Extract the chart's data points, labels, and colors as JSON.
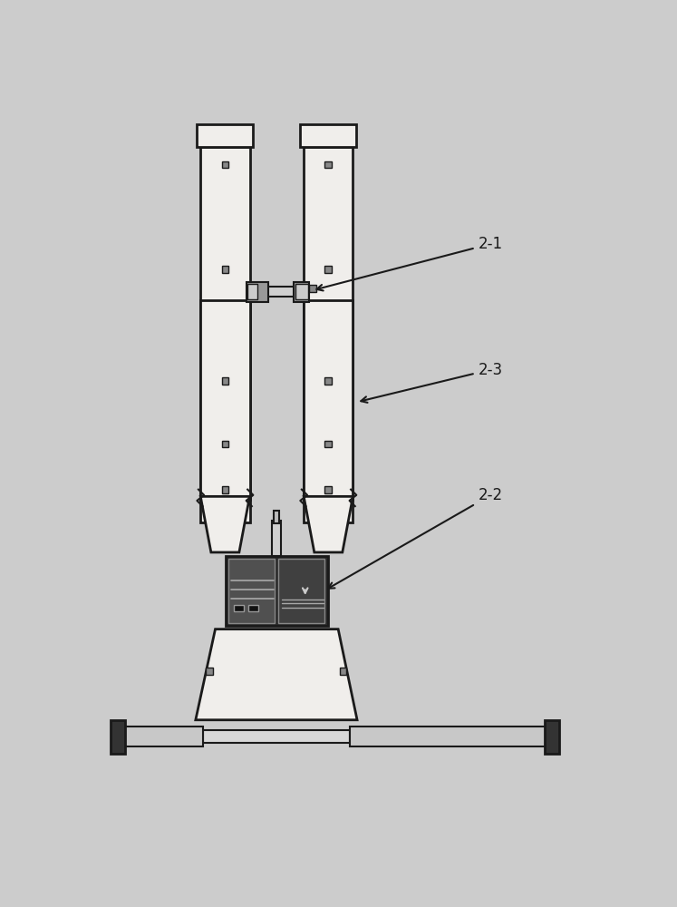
{
  "bg_color": "#cccccc",
  "line_color": "#1a1a1a",
  "white_fill": "#f0eeeb",
  "gray_fill": "#b0b0b0",
  "dark_fill": "#444444",
  "label_21": "2-1",
  "label_22": "2-2",
  "label_23": "2-3",
  "label_fontsize": 12,
  "fig_width": 7.47,
  "fig_height": 10.0,
  "dpi": 100
}
